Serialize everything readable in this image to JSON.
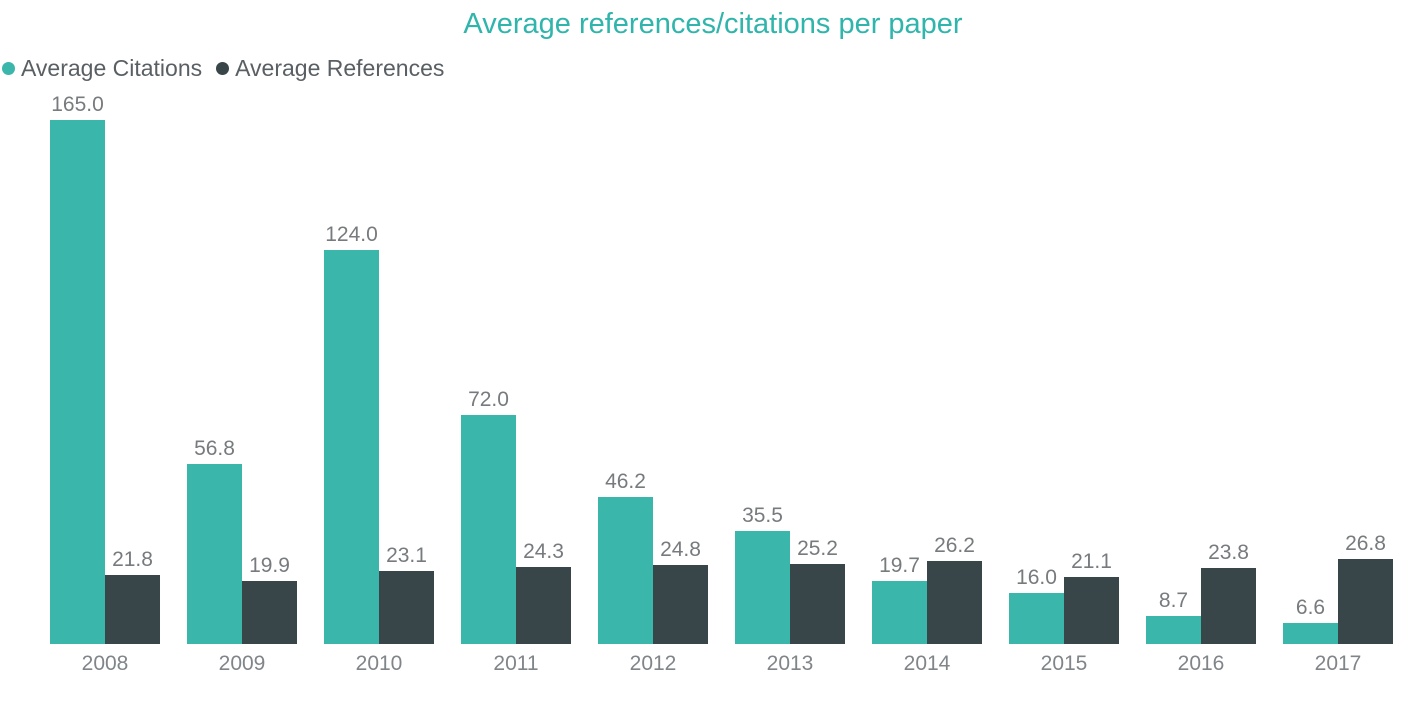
{
  "chart_data": {
    "type": "bar",
    "title": "Average references/citations per paper",
    "categories": [
      "2008",
      "2009",
      "2010",
      "2011",
      "2012",
      "2013",
      "2014",
      "2015",
      "2016",
      "2017"
    ],
    "series": [
      {
        "name": "Average Citations",
        "key": "citations",
        "color": "#3bb6aa",
        "values": [
          165.0,
          56.8,
          124.0,
          72.0,
          46.2,
          35.5,
          19.7,
          16.0,
          8.7,
          6.6
        ]
      },
      {
        "name": "Average References",
        "key": "references",
        "color": "#394649",
        "values": [
          21.8,
          19.9,
          23.1,
          24.3,
          24.8,
          25.2,
          26.2,
          21.1,
          23.8,
          26.8
        ]
      }
    ],
    "xlabel": "",
    "ylabel": "",
    "ylim": [
      0,
      165
    ],
    "grid": false,
    "axis_lines": false,
    "data_labels": true,
    "data_label_format": "one-decimal",
    "legend_position": "top-left",
    "colors": {
      "title": "#2fb5ab",
      "data_label": "#777b7e",
      "axis_label": "#808589",
      "legend_text": "#595f63",
      "background": "#ffffff"
    }
  }
}
